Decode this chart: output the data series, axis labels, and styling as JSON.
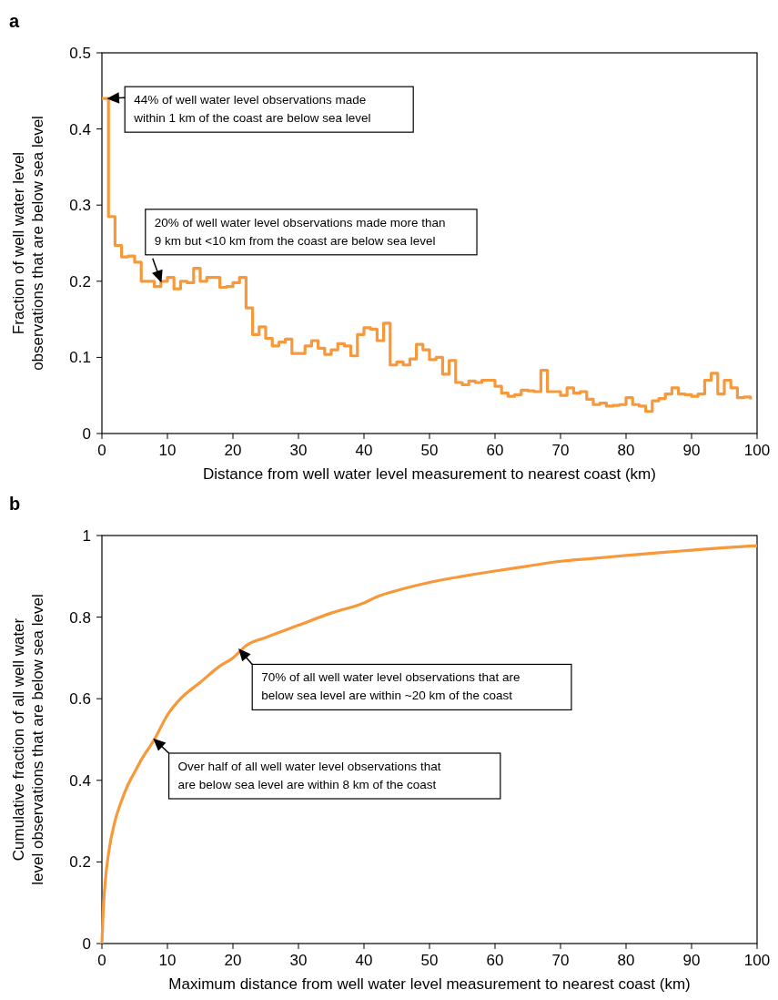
{
  "chart_data": [
    {
      "type": "step",
      "title": "a",
      "xlabel": "Distance from well water level measurement to nearest coast (km)",
      "ylabel": "Fraction of well water level observations that are below sea level",
      "x": [
        0,
        1,
        2,
        3,
        4,
        5,
        6,
        7,
        8,
        9,
        10,
        11,
        12,
        13,
        14,
        15,
        16,
        17,
        18,
        19,
        20,
        21,
        22,
        23,
        24,
        25,
        26,
        27,
        28,
        29,
        30,
        31,
        32,
        33,
        34,
        35,
        36,
        37,
        38,
        39,
        40,
        41,
        42,
        43,
        44,
        45,
        46,
        47,
        48,
        49,
        50,
        51,
        52,
        53,
        54,
        55,
        56,
        57,
        58,
        59,
        60,
        61,
        62,
        63,
        64,
        65,
        66,
        67,
        68,
        69,
        70,
        71,
        72,
        73,
        74,
        75,
        76,
        77,
        78,
        79,
        80,
        81,
        82,
        83,
        84,
        85,
        86,
        87,
        88,
        89,
        90,
        91,
        92,
        93,
        94,
        95,
        96,
        97,
        98,
        99
      ],
      "series": [
        {
          "color": "#f7993a",
          "values": [
            0.44,
            0.285,
            0.247,
            0.232,
            0.233,
            0.225,
            0.2,
            0.2,
            0.193,
            0.2,
            0.205,
            0.19,
            0.2,
            0.198,
            0.217,
            0.2,
            0.205,
            0.205,
            0.192,
            0.193,
            0.198,
            0.205,
            0.165,
            0.13,
            0.14,
            0.125,
            0.115,
            0.12,
            0.124,
            0.105,
            0.105,
            0.115,
            0.122,
            0.112,
            0.104,
            0.11,
            0.118,
            0.115,
            0.102,
            0.13,
            0.139,
            0.137,
            0.122,
            0.145,
            0.09,
            0.094,
            0.09,
            0.098,
            0.117,
            0.11,
            0.097,
            0.1,
            0.078,
            0.096,
            0.067,
            0.064,
            0.069,
            0.067,
            0.07,
            0.07,
            0.062,
            0.053,
            0.049,
            0.051,
            0.057,
            0.056,
            0.055,
            0.083,
            0.055,
            0.055,
            0.05,
            0.06,
            0.053,
            0.055,
            0.045,
            0.038,
            0.04,
            0.036,
            0.037,
            0.038,
            0.047,
            0.038,
            0.036,
            0.029,
            0.043,
            0.046,
            0.052,
            0.06,
            0.052,
            0.051,
            0.049,
            0.052,
            0.07,
            0.079,
            0.052,
            0.07,
            0.06,
            0.047,
            0.048,
            0.045
          ]
        }
      ],
      "xlim": [
        0,
        100
      ],
      "xticks": [
        0,
        10,
        20,
        30,
        40,
        50,
        60,
        70,
        80,
        90,
        100
      ],
      "ylim": [
        0,
        0.5
      ],
      "yticks": [
        0,
        0.1,
        0.2,
        0.3,
        0.4,
        0.5
      ],
      "annotations": [
        {
          "text": "44% of well water level observations made within 1 km of the coast are below sea level",
          "x": 1,
          "y": 0.44
        },
        {
          "text": "20% of well water level observations made more than 9 km but <10 km from the coast are below sea level",
          "x": 9,
          "y": 0.2
        }
      ]
    },
    {
      "type": "line",
      "title": "b",
      "xlabel": "Maximum distance from well water level measurement to nearest coast (km)",
      "ylabel": "Cumulative fraction of all well water level observations that are below sea level",
      "x": [
        0,
        0.2,
        0.5,
        1,
        2,
        3,
        4,
        5,
        6,
        8,
        10,
        12,
        15,
        18,
        20,
        22,
        25,
        30,
        35,
        40,
        42,
        45,
        50,
        55,
        60,
        65,
        70,
        75,
        80,
        85,
        90,
        95,
        100
      ],
      "series": [
        {
          "color": "#f7993a",
          "values": [
            0,
            0.08,
            0.15,
            0.22,
            0.3,
            0.35,
            0.39,
            0.42,
            0.45,
            0.5,
            0.56,
            0.6,
            0.64,
            0.68,
            0.7,
            0.73,
            0.75,
            0.78,
            0.81,
            0.835,
            0.85,
            0.865,
            0.885,
            0.9,
            0.913,
            0.925,
            0.937,
            0.944,
            0.951,
            0.958,
            0.964,
            0.97,
            0.975
          ]
        }
      ],
      "xlim": [
        0,
        100
      ],
      "xticks": [
        0,
        10,
        20,
        30,
        40,
        50,
        60,
        70,
        80,
        90,
        100
      ],
      "ylim": [
        0,
        1
      ],
      "yticks": [
        0,
        0.2,
        0.4,
        0.6,
        0.8,
        1
      ],
      "annotations": [
        {
          "text": "70% of all well water level observations that are below sea level are within ~20 km of the coast",
          "x": 21,
          "y": 0.72
        },
        {
          "text": "Over half of all well water level observations that are below sea level are within 8 km of the coast",
          "x": 8,
          "y": 0.5
        }
      ]
    }
  ]
}
